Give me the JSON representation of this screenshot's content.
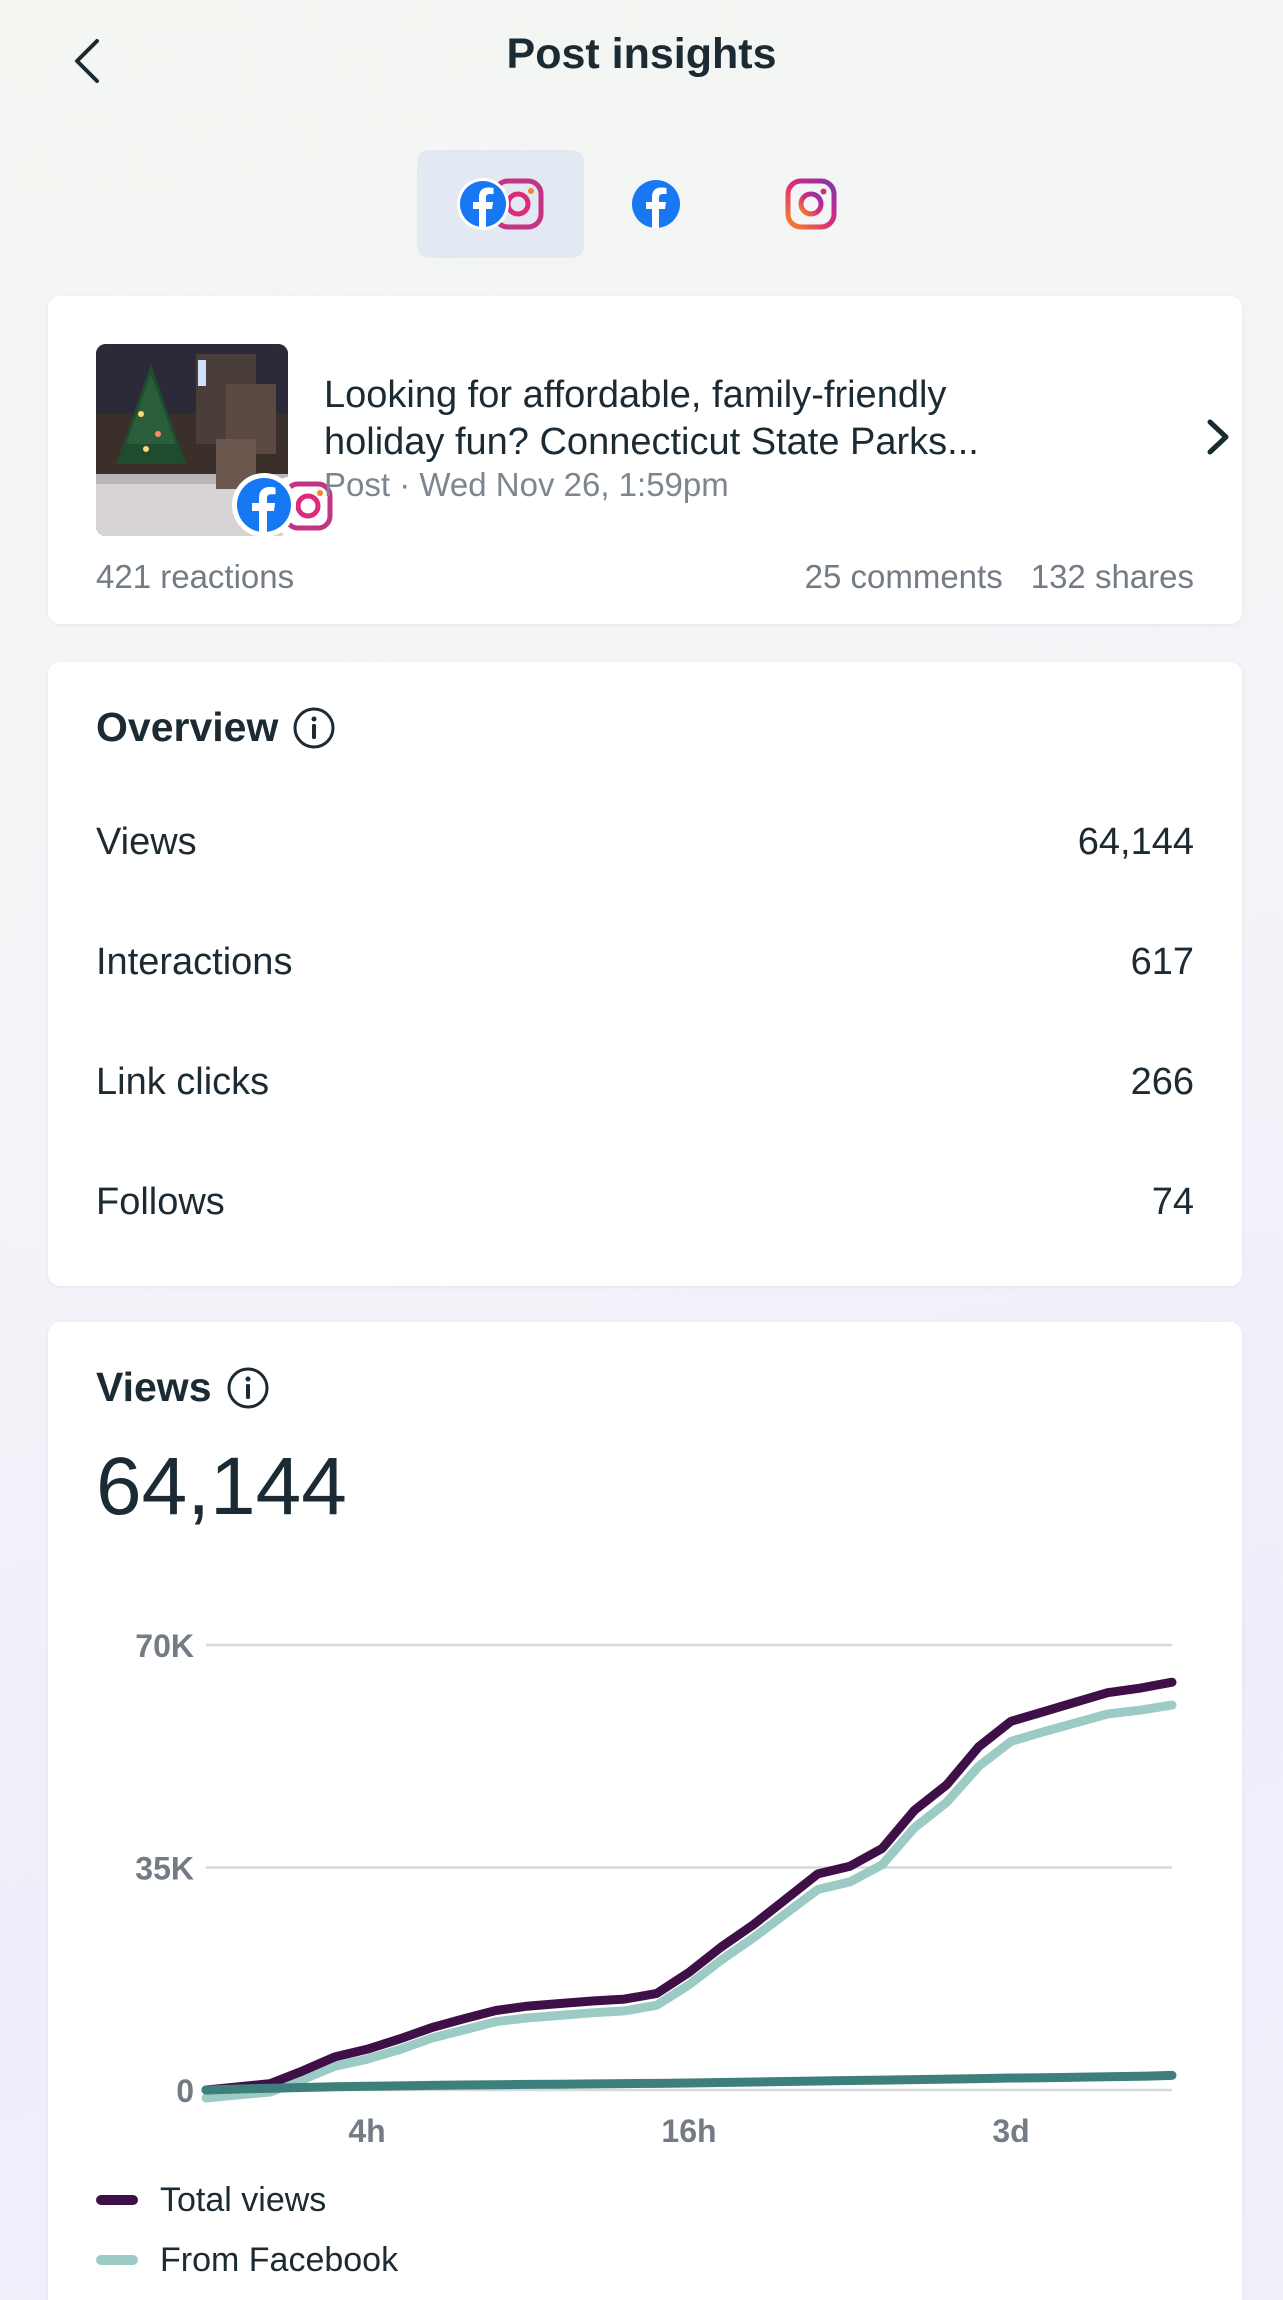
{
  "header": {
    "title": "Post insights"
  },
  "platform_tabs": [
    {
      "name": "facebook-instagram",
      "active": true
    },
    {
      "name": "facebook",
      "active": false
    },
    {
      "name": "instagram",
      "active": false
    }
  ],
  "post": {
    "text_line1": "Looking for affordable, family-friendly",
    "text_line2": "holiday fun? Connecticut State Parks...",
    "meta": "Post · Wed Nov 26, 1:59pm",
    "reactions": "421 reactions",
    "comments": "25 comments",
    "shares": "132 shares"
  },
  "overview": {
    "title": "Overview",
    "rows": [
      {
        "label": "Views",
        "value": "64,144"
      },
      {
        "label": "Interactions",
        "value": "617"
      },
      {
        "label": "Link clicks",
        "value": "266"
      },
      {
        "label": "Follows",
        "value": "74"
      }
    ]
  },
  "views": {
    "title": "Views",
    "total": "64,144"
  },
  "colors": {
    "total_views": "#3f1048",
    "from_facebook": "#9ccbc5",
    "from_instagram": "#3d7f7a",
    "facebook_blue": "#1877f2"
  },
  "chart_data": {
    "type": "line",
    "x_ticks": [
      "4h",
      "16h",
      "3d"
    ],
    "y_ticks": [
      "70K",
      "35K",
      "0"
    ],
    "ylim": [
      0,
      70000
    ],
    "grid": true,
    "legend_position": "bottom-left",
    "x": [
      0,
      1,
      2,
      3,
      4,
      5,
      6,
      7,
      8,
      9,
      10,
      11,
      12,
      13,
      14,
      15,
      16,
      17,
      18,
      19,
      20,
      21,
      22,
      23,
      24,
      25,
      26,
      27,
      28,
      29,
      30
    ],
    "x_tick_indices": [
      5,
      15,
      25
    ],
    "series": [
      {
        "name": "Total views",
        "values": [
          0,
          500,
          1000,
          3000,
          5200,
          6400,
          8000,
          9800,
          11200,
          12500,
          13200,
          13600,
          14000,
          14300,
          15200,
          18500,
          22500,
          26000,
          30000,
          34000,
          35200,
          38000,
          44000,
          48000,
          54000,
          58000,
          59500,
          61000,
          62500,
          63200,
          64144
        ]
      },
      {
        "name": "From Facebook",
        "values": [
          0,
          480,
          950,
          2900,
          5000,
          6100,
          7600,
          9400,
          10700,
          12000,
          12600,
          13000,
          13400,
          13700,
          14600,
          17800,
          21700,
          25200,
          29000,
          32800,
          34000,
          36700,
          42500,
          46500,
          52200,
          56100,
          57600,
          59000,
          60400,
          61000,
          61800
        ]
      },
      {
        "name": "",
        "values": [
          0,
          150,
          280,
          400,
          500,
          580,
          650,
          720,
          780,
          830,
          880,
          920,
          960,
          1000,
          1040,
          1100,
          1180,
          1260,
          1340,
          1420,
          1500,
          1560,
          1640,
          1720,
          1800,
          1880,
          1940,
          2000,
          2080,
          2160,
          2300
        ]
      }
    ]
  }
}
